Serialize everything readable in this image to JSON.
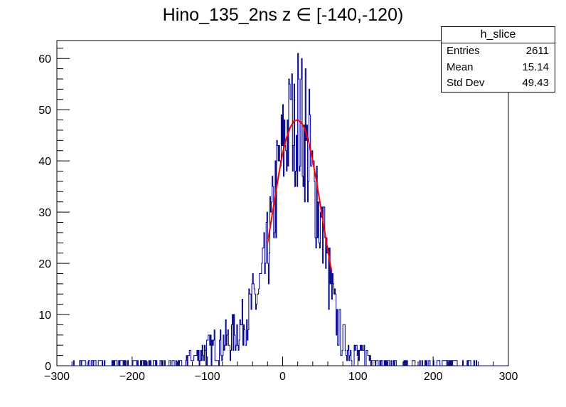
{
  "chart_data": {
    "type": "bar",
    "title": "Hino_135_2ns z  ∈ [-140,-120)",
    "xlabel": "",
    "ylabel": "",
    "xlim": [
      -300,
      300
    ],
    "ylim": [
      0,
      63.5
    ],
    "xticks": [
      -300,
      -200,
      -100,
      0,
      100,
      200,
      300
    ],
    "xtick_labels": [
      "−300",
      "−200",
      "−100",
      "0",
      "100",
      "200",
      "300"
    ],
    "yticks": [
      0,
      10,
      20,
      30,
      40,
      50,
      60
    ],
    "ytick_labels": [
      "0",
      "10",
      "20",
      "30",
      "40",
      "50",
      "60"
    ],
    "grid": false,
    "bins": 600,
    "series": [
      {
        "name": "h_slice",
        "color": "#00008b",
        "x": [
          -280,
          -265,
          -260,
          -250,
          -245,
          -215,
          -205,
          -200,
          -195,
          -190,
          -185,
          -180,
          -175,
          -170,
          -165,
          -160,
          -155,
          -150,
          -145,
          -140,
          -135,
          -130,
          -125,
          -120,
          -115,
          -110,
          -105,
          -100,
          -95,
          -90,
          -85,
          -80,
          -75,
          -70,
          -65,
          -60,
          -55,
          -50,
          -45,
          -40,
          -35,
          -30,
          -25,
          -20,
          -15,
          -10,
          -5,
          0,
          5,
          10,
          15,
          20,
          25,
          30,
          35,
          40,
          45,
          50,
          55,
          60,
          65,
          70,
          75,
          80,
          85,
          90,
          95,
          100,
          105,
          110,
          115,
          120,
          125,
          130,
          135,
          140,
          145,
          150,
          155,
          160,
          165,
          170,
          175,
          180,
          185,
          190,
          195,
          200,
          205,
          210,
          215,
          220,
          225,
          230,
          235,
          240,
          250,
          260
        ],
        "values": [
          1,
          1,
          1,
          1,
          1,
          1,
          1,
          1,
          1,
          1,
          1,
          1,
          1,
          1,
          1,
          1,
          1,
          1,
          1,
          1,
          1,
          1,
          2,
          1,
          2,
          2,
          3,
          3,
          3,
          4,
          4,
          4,
          5,
          5,
          6,
          7,
          8,
          9,
          10,
          12,
          13,
          15,
          18,
          22,
          27,
          32,
          38,
          42,
          45,
          47,
          48,
          47,
          45,
          43,
          40,
          36,
          32,
          28,
          23,
          19,
          14,
          10,
          7,
          5,
          4,
          3,
          3,
          2,
          2,
          2,
          2,
          1,
          1,
          1,
          1,
          1,
          1,
          1,
          1,
          1,
          1,
          1,
          1,
          1,
          1,
          1,
          1,
          1,
          1,
          1,
          1,
          1,
          1,
          1,
          1,
          1,
          1,
          1
        ],
        "noise_peaks": [
          {
            "x": 20,
            "value": 61
          },
          {
            "x": 25,
            "value": 60
          },
          {
            "x": 15,
            "value": 55
          },
          {
            "x": 30,
            "value": 58
          },
          {
            "x": 10,
            "value": 52
          },
          {
            "x": 35,
            "value": 54
          },
          {
            "x": -10,
            "value": 40
          },
          {
            "x": 45,
            "value": 39
          },
          {
            "x": 55,
            "value": 31
          }
        ]
      },
      {
        "name": "",
        "type": "line",
        "color": "#ff0000",
        "x": [
          -20,
          -15,
          -10,
          -5,
          0,
          5,
          10,
          15,
          20,
          25,
          30,
          35,
          40,
          45,
          50,
          55,
          60,
          65
        ],
        "values": [
          24,
          28.5,
          33,
          37.5,
          41.5,
          44.5,
          46.5,
          47.8,
          48,
          47.5,
          46,
          43.5,
          40,
          36,
          31.5,
          27,
          22.5,
          18.5
        ]
      }
    ]
  },
  "stats": {
    "name": "h_slice",
    "rows": [
      {
        "label": "Entries",
        "value": "2611"
      },
      {
        "label": "Mean",
        "value": "15.14"
      },
      {
        "label": "Std Dev",
        "value": "49.43"
      }
    ]
  }
}
